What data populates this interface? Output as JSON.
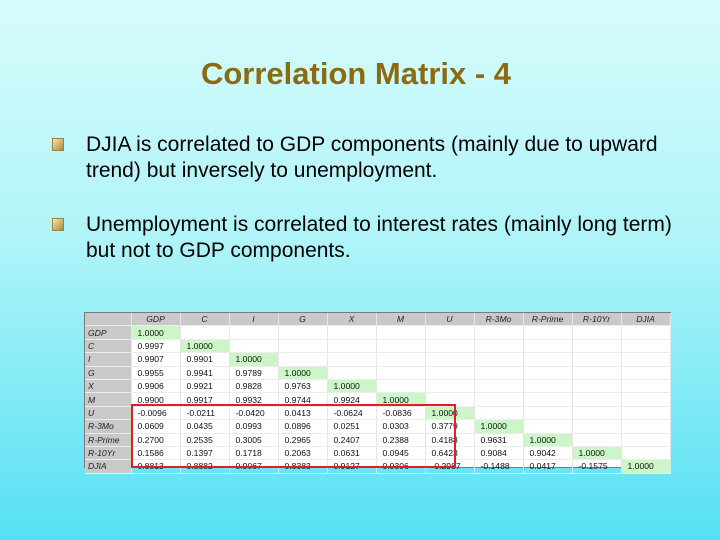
{
  "slide": {
    "title": "Correlation Matrix - 4",
    "bullets": [
      "DJIA is correlated to GDP components (mainly due to upward trend) but inversely to unemployment.",
      "Unemployment is correlated to interest rates (mainly long term) but not to GDP components."
    ]
  },
  "matrix": {
    "columns": [
      "GDP",
      "C",
      "I",
      "G",
      "X",
      "M",
      "U",
      "R-3Mo",
      "R-Prime",
      "R-10Yr",
      "DJIA"
    ],
    "rows": [
      {
        "label": "GDP",
        "values": [
          "1.0000"
        ]
      },
      {
        "label": "C",
        "values": [
          "0.9997",
          "1.0000"
        ]
      },
      {
        "label": "I",
        "values": [
          "0.9907",
          "0.9901",
          "1.0000"
        ]
      },
      {
        "label": "G",
        "values": [
          "0.9955",
          "0.9941",
          "0.9789",
          "1.0000"
        ]
      },
      {
        "label": "X",
        "values": [
          "0.9906",
          "0.9921",
          "0.9828",
          "0.9763",
          "1.0000"
        ]
      },
      {
        "label": "M",
        "values": [
          "0.9900",
          "0.9917",
          "0.9932",
          "0.9744",
          "0.9924",
          "1.0000"
        ]
      },
      {
        "label": "U",
        "values": [
          "-0.0096",
          "-0.0211",
          "-0.0420",
          "0.0413",
          "-0.0624",
          "-0.0836",
          "1.0000"
        ]
      },
      {
        "label": "R-3Mo",
        "values": [
          "0.0609",
          "0.0435",
          "0.0993",
          "0.0896",
          "0.0251",
          "0.0303",
          "0.3779",
          "1.0000"
        ]
      },
      {
        "label": "R-Prime",
        "values": [
          "0.2700",
          "0.2535",
          "0.3005",
          "0.2965",
          "0.2407",
          "0.2388",
          "0.4188",
          "0.9631",
          "1.0000"
        ]
      },
      {
        "label": "R-10Yr",
        "values": [
          "0.1586",
          "0.1397",
          "0.1718",
          "0.2063",
          "0.0631",
          "0.0945",
          "0.6423",
          "0.9084",
          "0.9042",
          "1.0000"
        ]
      },
      {
        "label": "DJIA",
        "values": [
          "0.8813",
          "0.8882",
          "0.9067",
          "0.8383",
          "0.9127",
          "0.9306",
          "-0.2987",
          "-0.1488",
          "0.0417",
          "-0.1575",
          "1.0000"
        ]
      }
    ]
  },
  "colors": {
    "title": "#8a6a12",
    "diagonal": "#ccf5c8",
    "highlight_box": "#e02020",
    "header_bg": "#c9c9c9"
  }
}
